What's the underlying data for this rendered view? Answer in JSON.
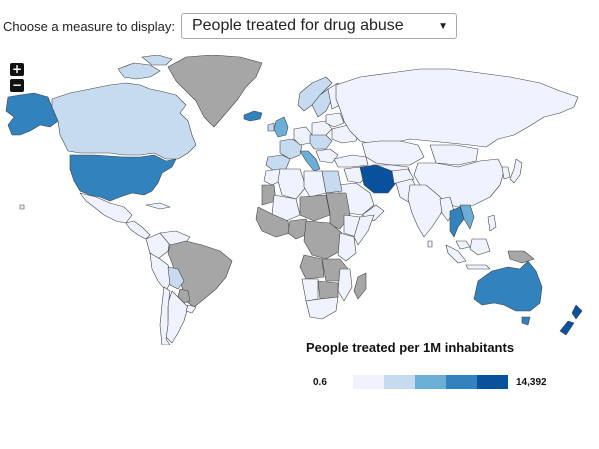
{
  "controls": {
    "measure_label": "Choose a measure to display:",
    "measure_selected": "People treated for drug abuse",
    "caret": "▼",
    "zoom_in": "+",
    "zoom_out": "−"
  },
  "legend": {
    "title": "People treated per 1M inhabitants",
    "min_label": "0.6",
    "max_label": "14,392",
    "colors": [
      "#eff3ff",
      "#c6dbef",
      "#6baed6",
      "#3182bd",
      "#08519c"
    ]
  },
  "colors": {
    "no_data": "#a6a6a6",
    "border": "#444444",
    "ocean": "#ffffff"
  }
}
